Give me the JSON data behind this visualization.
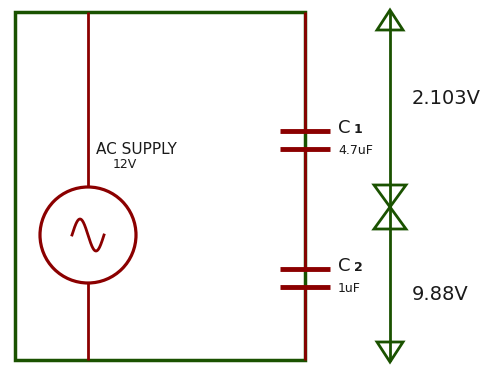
{
  "bg_color": "#ffffff",
  "circuit_color": "#8B0000",
  "green_color": "#1a5200",
  "black_color": "#1a1a1a",
  "ac_supply_label": "AC SUPPLY",
  "ac_supply_voltage": "12V",
  "c1_label": "C",
  "c1_subscript": "1",
  "c1_value": "4.7uF",
  "c2_label": "C",
  "c2_subscript": "2",
  "c2_value": "1uF",
  "v1_label": "2.103V",
  "v2_label": "9.88V"
}
